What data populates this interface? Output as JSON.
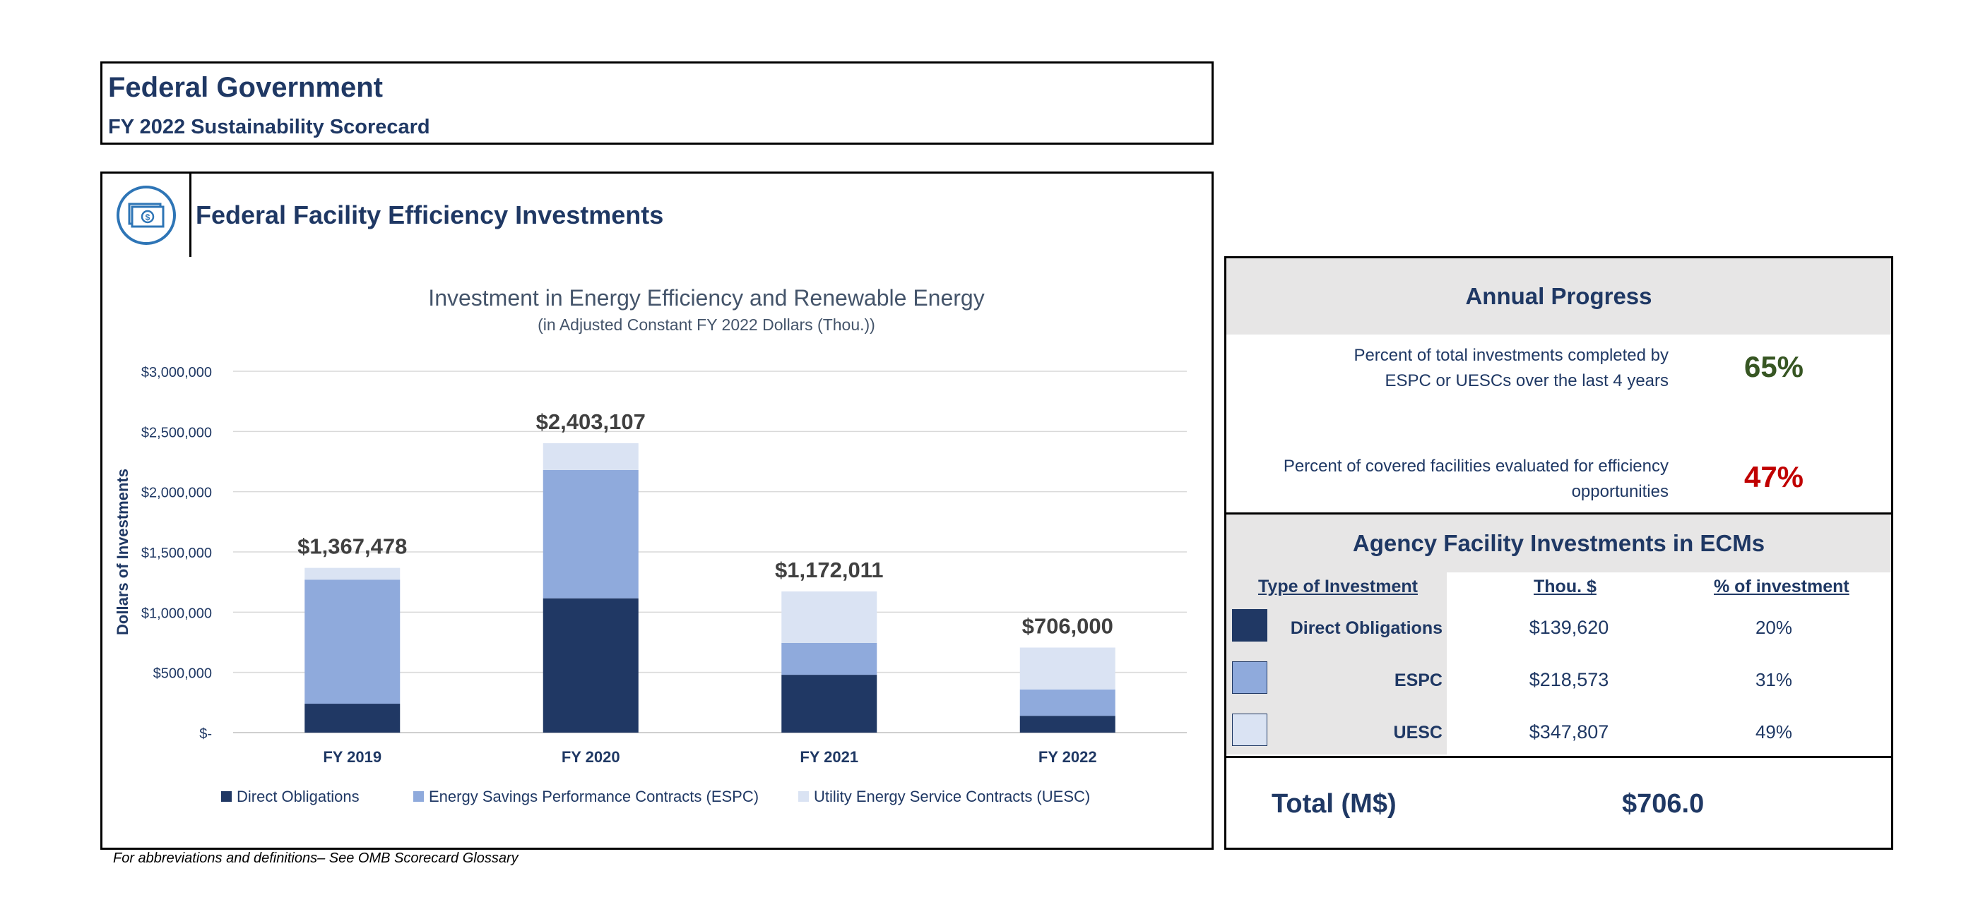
{
  "header": {
    "title": "Federal Government",
    "subtitle": "FY 2022 Sustainability Scorecard"
  },
  "section": {
    "title": "Federal Facility Efficiency Investments",
    "icon": "money-icon"
  },
  "chart_data": {
    "type": "bar",
    "stacked": true,
    "title": "Investment in Energy Efficiency and Renewable Energy",
    "subtitle": "(in Adjusted Constant FY 2022 Dollars (Thou.))",
    "xlabel": "",
    "ylabel": "Dollars of Investments",
    "ylim": [
      0,
      3000000
    ],
    "yticks": [
      0,
      500000,
      1000000,
      1500000,
      2000000,
      2500000,
      3000000
    ],
    "ytick_labels": [
      "$-",
      "$500,000",
      "$1,000,000",
      "$1,500,000",
      "$2,000,000",
      "$2,500,000",
      "$3,000,000"
    ],
    "categories": [
      "FY 2019",
      "FY 2020",
      "FY 2021",
      "FY 2022"
    ],
    "series": [
      {
        "name": "Direct Obligations",
        "color": "#203864",
        "values": [
          240000,
          1115000,
          480000,
          139620
        ]
      },
      {
        "name": "Energy Savings Performance Contracts (ESPC)",
        "color": "#8faadc",
        "values": [
          1030000,
          1065000,
          265000,
          218573
        ]
      },
      {
        "name": "Utility Energy Service Contracts (UESC)",
        "color": "#dae3f3",
        "values": [
          97478,
          223107,
          427011,
          347807
        ]
      }
    ],
    "totals": [
      1367478,
      2403107,
      1172011,
      706000
    ],
    "total_labels": [
      "$1,367,478",
      "$2,403,107",
      "$1,172,011",
      "$706,000"
    ],
    "grid": true,
    "legend_position": "bottom"
  },
  "annual_progress": {
    "title": "Annual Progress",
    "metrics": [
      {
        "label_line1": "Percent of total investments completed by",
        "label_line2": "ESPC or UESCs over the last 4 years",
        "value": "65%",
        "color": "#375623"
      },
      {
        "label_line1": "Percent of covered facilities evaluated for efficiency",
        "label_line2": "opportunities",
        "value": "47%",
        "color": "#c00000"
      }
    ]
  },
  "ecm": {
    "title": "Agency Facility Investments in ECMs",
    "col_type": "Type of Investment",
    "col_thou": "Thou. $",
    "col_pct": "% of investment",
    "rows": [
      {
        "label": "Direct Obligations",
        "thou": "$139,620",
        "pct": "20%",
        "color": "#203864"
      },
      {
        "label": "ESPC",
        "thou": "$218,573",
        "pct": "31%",
        "color": "#8faadc"
      },
      {
        "label": "UESC",
        "thou": "$347,807",
        "pct": "49%",
        "color": "#dae3f3"
      }
    ],
    "total_label": "Total (M$)",
    "total_value": "$706.0"
  },
  "footnote": "For abbreviations and definitions– See OMB Scorecard Glossary"
}
